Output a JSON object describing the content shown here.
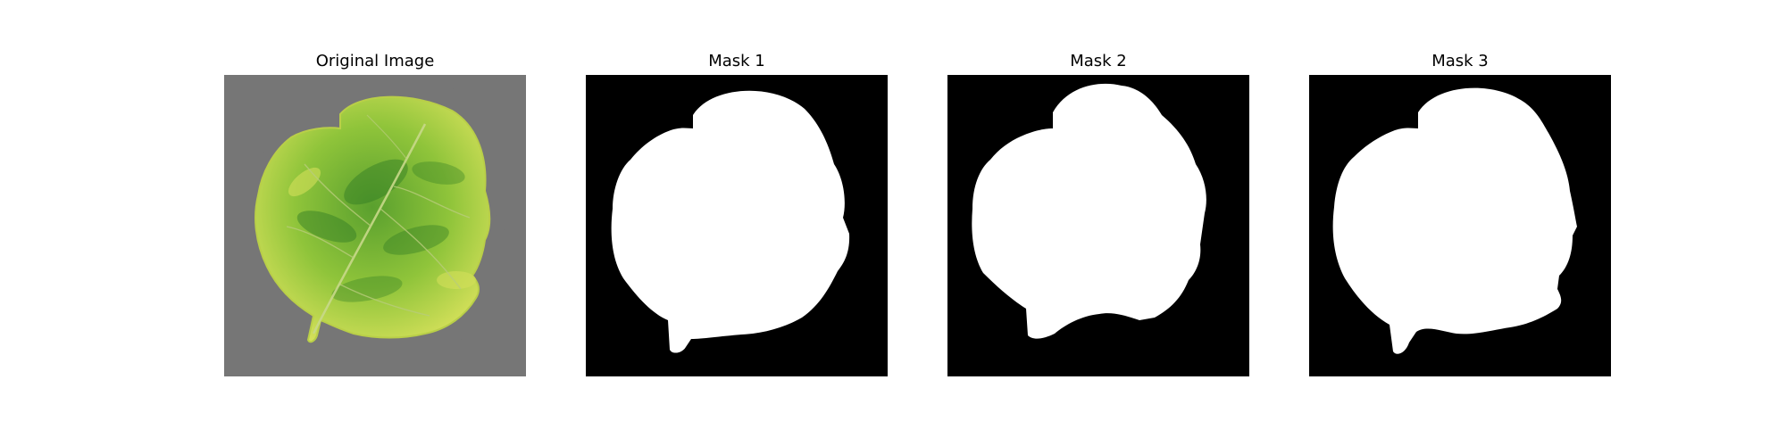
{
  "panels": [
    {
      "title": "Original Image",
      "kind": "photo"
    },
    {
      "title": "Mask 1",
      "kind": "mask"
    },
    {
      "title": "Mask 2",
      "kind": "mask"
    },
    {
      "title": "Mask 3",
      "kind": "mask"
    }
  ],
  "colors": {
    "background": "#ffffff",
    "photo_backdrop": "#7b7b7b",
    "leaf_base": "#8fc43a",
    "leaf_light": "#d4e05a",
    "leaf_dark": "#2f7a23",
    "mask_background": "#000000",
    "mask_foreground": "#ffffff"
  }
}
